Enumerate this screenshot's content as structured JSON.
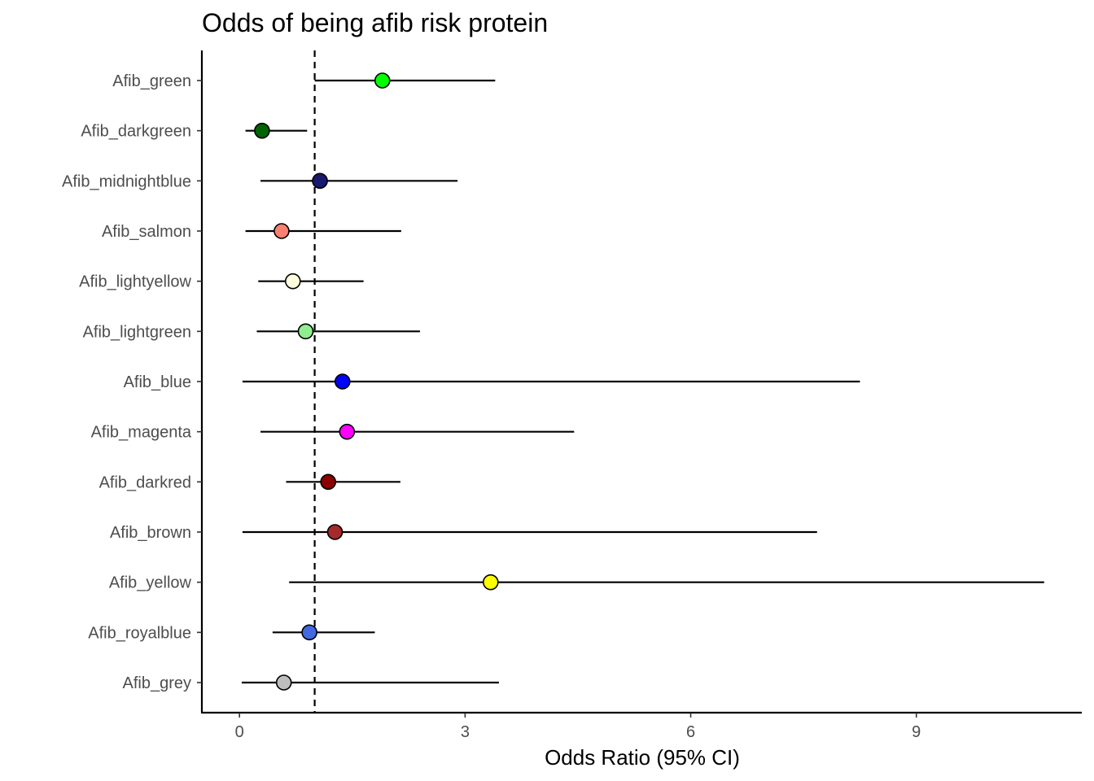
{
  "chart_data": {
    "type": "forest",
    "title": "Odds of being afib risk protein",
    "xlabel": "Odds Ratio (95% CI)",
    "ylabel": "",
    "xlim": [
      -0.5,
      11.2
    ],
    "xticks": [
      0,
      3,
      6,
      9
    ],
    "xtick_labels": [
      "0",
      "3",
      "6",
      "9"
    ],
    "reference_line": 1,
    "grid": false,
    "legend": "none",
    "categories": [
      "Afib_green",
      "Afib_darkgreen",
      "Afib_midnightblue",
      "Afib_salmon",
      "Afib_lightyellow",
      "Afib_lightgreen",
      "Afib_blue",
      "Afib_magenta",
      "Afib_darkred",
      "Afib_brown",
      "Afib_yellow",
      "Afib_royalblue",
      "Afib_grey"
    ],
    "points": [
      {
        "label": "Afib_green",
        "or": 1.9,
        "lower": 1.0,
        "upper": 3.4,
        "color": "#00FF00"
      },
      {
        "label": "Afib_darkgreen",
        "or": 0.3,
        "lower": 0.08,
        "upper": 0.9,
        "color": "#006400"
      },
      {
        "label": "Afib_midnightblue",
        "or": 1.07,
        "lower": 0.28,
        "upper": 2.9,
        "color": "#191970"
      },
      {
        "label": "Afib_salmon",
        "or": 0.56,
        "lower": 0.08,
        "upper": 2.15,
        "color": "#FA8072"
      },
      {
        "label": "Afib_lightyellow",
        "or": 0.71,
        "lower": 0.25,
        "upper": 1.65,
        "color": "#FFFFE0"
      },
      {
        "label": "Afib_lightgreen",
        "or": 0.88,
        "lower": 0.23,
        "upper": 2.4,
        "color": "#90EE90"
      },
      {
        "label": "Afib_blue",
        "or": 1.37,
        "lower": 0.04,
        "upper": 8.25,
        "color": "#0000FF"
      },
      {
        "label": "Afib_magenta",
        "or": 1.43,
        "lower": 0.28,
        "upper": 4.45,
        "color": "#FF00FF"
      },
      {
        "label": "Afib_darkred",
        "or": 1.18,
        "lower": 0.62,
        "upper": 2.14,
        "color": "#8B0000"
      },
      {
        "label": "Afib_brown",
        "or": 1.27,
        "lower": 0.04,
        "upper": 7.68,
        "color": "#A52A2A"
      },
      {
        "label": "Afib_yellow",
        "or": 3.34,
        "lower": 0.66,
        "upper": 10.7,
        "color": "#FFFF00"
      },
      {
        "label": "Afib_royalblue",
        "or": 0.93,
        "lower": 0.44,
        "upper": 1.8,
        "color": "#4169E1"
      },
      {
        "label": "Afib_grey",
        "or": 0.59,
        "lower": 0.03,
        "upper": 3.45,
        "color": "#BEBEBE"
      }
    ]
  }
}
